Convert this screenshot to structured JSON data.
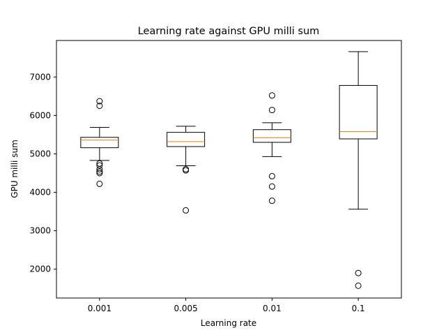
{
  "chart_data": {
    "type": "box",
    "title": "Learning rate against GPU milli sum",
    "xlabel": "Learning rate",
    "ylabel": "GPU milli sum",
    "ylim": [
      1250,
      7950
    ],
    "yticks": [
      2000,
      3000,
      4000,
      5000,
      6000,
      7000
    ],
    "categories": [
      "0.001",
      "0.005",
      "0.01",
      "0.1"
    ],
    "boxes": [
      {
        "category": "0.001",
        "whisker_low": 4830,
        "q1": 5160,
        "median": 5360,
        "q3": 5430,
        "whisker_high": 5690,
        "outliers": [
          6370,
          6250,
          4750,
          4700,
          4600,
          4540,
          4500,
          4220
        ]
      },
      {
        "category": "0.005",
        "whisker_low": 4690,
        "q1": 5190,
        "median": 5320,
        "q3": 5560,
        "whisker_high": 5720,
        "outliers": [
          4600,
          4570,
          3530
        ]
      },
      {
        "category": "0.01",
        "whisker_low": 4930,
        "q1": 5300,
        "median": 5420,
        "q3": 5630,
        "whisker_high": 5810,
        "outliers": [
          6520,
          6140,
          4420,
          4150,
          3780
        ]
      },
      {
        "category": "0.1",
        "whisker_low": 3560,
        "q1": 5390,
        "median": 5580,
        "q3": 6780,
        "whisker_high": 7660,
        "outliers": [
          1900,
          1570
        ]
      }
    ],
    "colors": {
      "box": "#000000",
      "median": "#ff7f0e",
      "outlier_edge": "#000000"
    },
    "grid": false,
    "legend": "none"
  }
}
